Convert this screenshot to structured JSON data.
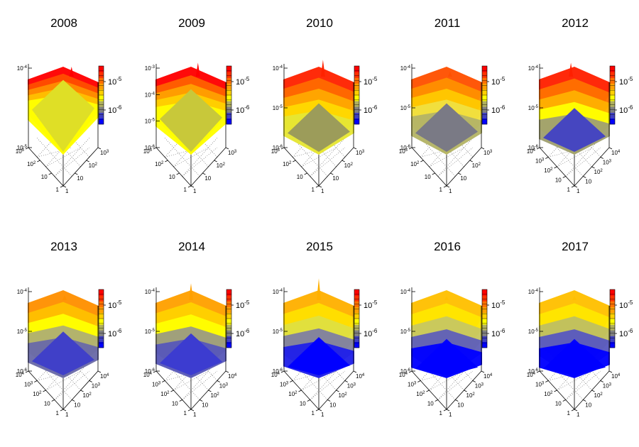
{
  "chart_data": {
    "type": "surface",
    "panels": [
      {
        "title": "2008",
        "z_ticks": [
          "10-4",
          "10-5"
        ],
        "z_log_range": [
          -5,
          -4
        ],
        "xy_ticks": [
          "1",
          "10",
          "10^2",
          "10^3"
        ],
        "colorbar_ticks": [
          "10^-5",
          "10^-6"
        ],
        "plateau": 0.3,
        "colors": [
          "#ff0000",
          "#ff4d00",
          "#ff8c00",
          "#ffc000",
          "#ffff00",
          "#dfdf26"
        ],
        "spikes": [
          {
            "pos": 0.62,
            "h": 0.1
          }
        ]
      },
      {
        "title": "2009",
        "z_ticks": [
          "10-3",
          "10-4",
          "10-5",
          "10-6"
        ],
        "z_log_range": [
          -6,
          -3
        ],
        "xy_ticks": [
          "1",
          "10",
          "10^2",
          "10^3"
        ],
        "colorbar_ticks": [
          "10^-5",
          "10^-6"
        ],
        "plateau": 0.4,
        "colors": [
          "#ff0000",
          "#ff6000",
          "#ffa000",
          "#ffd000",
          "#ffff00",
          "#c8c83a"
        ],
        "spikes": [
          {
            "pos": 0.6,
            "h": 0.14
          }
        ]
      },
      {
        "title": "2010",
        "z_ticks": [
          "10-4",
          "10-5",
          "10-6"
        ],
        "z_log_range": [
          -6,
          -4
        ],
        "xy_ticks": [
          "1",
          "10",
          "10^2",
          "10^3"
        ],
        "colorbar_ticks": [
          "10^-5",
          "10^-6"
        ],
        "plateau": 0.55,
        "colors": [
          "#ff2200",
          "#ff6a00",
          "#ffa800",
          "#ffd800",
          "#e6e633",
          "#9c9c5a"
        ],
        "spikes": [
          {
            "pos": 0.56,
            "h": 0.17
          }
        ]
      },
      {
        "title": "2011",
        "z_ticks": [
          "10-4",
          "10-5",
          "10-6"
        ],
        "z_log_range": [
          -6,
          -4
        ],
        "xy_ticks": [
          "1",
          "10",
          "10^2",
          "10^3"
        ],
        "colorbar_ticks": [
          "10^-5",
          "10^-6"
        ],
        "plateau": 0.55,
        "colors": [
          "#ff5000",
          "#ff9000",
          "#ffc800",
          "#f0e040",
          "#b4b466",
          "#7a7a85"
        ],
        "spikes": [
          {
            "pos": 0.55,
            "h": 0.05
          }
        ]
      },
      {
        "title": "2012",
        "z_ticks": [
          "10-4",
          "10-5",
          "10-6"
        ],
        "z_log_range": [
          -6,
          -4
        ],
        "xy_ticks": [
          "1",
          "10",
          "10^2",
          "10^3",
          "10^4"
        ],
        "colorbar_ticks": [
          "10^-5",
          "10^-6"
        ],
        "plateau": 0.6,
        "colors": [
          "#ff2000",
          "#ff7000",
          "#ffb000",
          "#ffff00",
          "#a0a070",
          "#4646c0"
        ],
        "spikes": [
          {
            "pos": 0.45,
            "h": 0.14
          }
        ]
      },
      {
        "title": "2013",
        "z_ticks": [
          "10-4",
          "10-5",
          "10-6"
        ],
        "z_log_range": [
          -6,
          -4
        ],
        "xy_ticks": [
          "1",
          "10",
          "10^2",
          "10^3",
          "10^4"
        ],
        "colorbar_ticks": [
          "10^-5",
          "10^-6"
        ],
        "plateau": 0.6,
        "colors": [
          "#ff9000",
          "#ffc000",
          "#ffff00",
          "#b0b070",
          "#6a6aa8",
          "#4040c8"
        ],
        "spikes": [
          {
            "pos": 0.52,
            "h": 0.05
          }
        ]
      },
      {
        "title": "2014",
        "z_ticks": [
          "10-4",
          "10-5",
          "10-6"
        ],
        "z_log_range": [
          -6,
          -4
        ],
        "xy_ticks": [
          "1",
          "10",
          "10^2",
          "10^3",
          "10^4"
        ],
        "colorbar_ticks": [
          "10^-5",
          "10^-6"
        ],
        "plateau": 0.62,
        "colors": [
          "#ffa000",
          "#ffd000",
          "#ffff00",
          "#9c9c80",
          "#5858b8",
          "#3c3cd0"
        ],
        "spikes": [
          {
            "pos": 0.5,
            "h": 0.17
          }
        ]
      },
      {
        "title": "2015",
        "z_ticks": [
          "10-4",
          "10-5",
          "10-6"
        ],
        "z_log_range": [
          -6,
          -4
        ],
        "xy_ticks": [
          "1",
          "10",
          "10^2",
          "10^3",
          "10^4"
        ],
        "colorbar_ticks": [
          "10^-5",
          "10^-6"
        ],
        "plateau": 0.66,
        "colors": [
          "#ffb000",
          "#ffe000",
          "#e0e040",
          "#8080a0",
          "#2020e8",
          "#0000ff"
        ],
        "spikes": [
          {
            "pos": 0.5,
            "h": 0.22
          }
        ]
      },
      {
        "title": "2016",
        "z_ticks": [
          "10-4",
          "10-5",
          "10-6"
        ],
        "z_log_range": [
          -6,
          -4
        ],
        "xy_ticks": [
          "1",
          "10",
          "10^2",
          "10^3",
          "10^4"
        ],
        "colorbar_ticks": [
          "10^-5",
          "10^-6"
        ],
        "plateau": 0.68,
        "colors": [
          "#ffc000",
          "#ffe600",
          "#c8c860",
          "#6060b8",
          "#0000ff",
          "#0000ff"
        ],
        "spikes": [
          {
            "pos": 0.5,
            "h": 0.04
          }
        ]
      },
      {
        "title": "2017",
        "z_ticks": [
          "10-4",
          "10-5",
          "10-6"
        ],
        "z_log_range": [
          -6,
          -4
        ],
        "xy_ticks": [
          "1",
          "10",
          "10^2",
          "10^3",
          "10^4"
        ],
        "colorbar_ticks": [
          "10^-5",
          "10^-6"
        ],
        "plateau": 0.68,
        "colors": [
          "#ffc000",
          "#ffe600",
          "#c0c060",
          "#5858c0",
          "#0000ff",
          "#0000ff"
        ],
        "spikes": [
          {
            "pos": 0.5,
            "h": 0.04
          }
        ]
      }
    ],
    "colorbar_palette": [
      "#0000ff",
      "#4040c0",
      "#808080",
      "#b0b060",
      "#ffff00",
      "#ffd000",
      "#ffa000",
      "#ff7000",
      "#ff3000",
      "#ff0000"
    ],
    "grid": true,
    "z_scale": "log",
    "x_scale": "log",
    "y_scale": "log"
  }
}
